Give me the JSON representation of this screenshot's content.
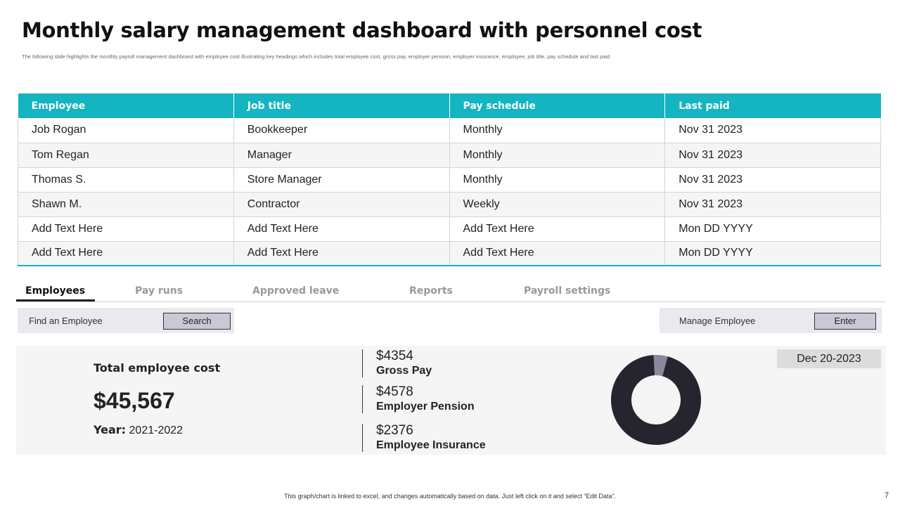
{
  "title": "Monthly salary management dashboard with personnel cost",
  "subtitle": "The  following slide highlights the monthly payroll management dashboard  with employee cost illustrating key headings which includes total employee cost, gross pay, employer pension, employer insurance, employee, job title, pay schedule and last paid",
  "table": {
    "headers": [
      "Employee",
      "Job title",
      "Pay schedule",
      "Last paid"
    ],
    "rows": [
      [
        "Job Rogan",
        "Bookkeeper",
        "Monthly",
        "Nov 31 2023"
      ],
      [
        "Tom Regan",
        "Manager",
        "Monthly",
        "Nov 31 2023"
      ],
      [
        "Thomas S.",
        "Store Manager",
        "Monthly",
        "Nov 31 2023"
      ],
      [
        "Shawn M.",
        "Contractor",
        "Weekly",
        "Nov 31 2023"
      ],
      [
        "Add Text Here",
        "Add Text Here",
        "Add Text Here",
        "Mon DD YYYY"
      ],
      [
        "Add Text Here",
        "Add Text Here",
        "Add Text Here",
        "Mon DD YYYY"
      ]
    ]
  },
  "tabs": [
    "Employees",
    "Pay runs",
    "Approved leave",
    "Reports",
    "Payroll settings"
  ],
  "active_tab": "Employees",
  "find_employee": {
    "label": "Find an Employee",
    "button": "Search"
  },
  "manage_employee": {
    "label": "Manage Employee",
    "button": "Enter"
  },
  "summary": {
    "total_label": "Total employee cost",
    "total_value": "$45,567",
    "year_label": "Year:",
    "year_value": "2021-2022",
    "metrics": [
      {
        "value": "$4354",
        "label": "Gross Pay"
      },
      {
        "value": "$4578",
        "label": "Employer Pension"
      },
      {
        "value": "$2376",
        "label": "Employee Insurance"
      }
    ],
    "date": "Dec 20-2023"
  },
  "donut": {
    "slices": [
      {
        "value": 95,
        "color": "#26252f"
      },
      {
        "value": 5,
        "color": "#8b889c"
      }
    ]
  },
  "footer_note": "This graph/chart is linked to excel, and changes automatically based on data. Just left click on it and select “Edit Data”.",
  "page_number": "7",
  "colors": {
    "accent": "#14b4c1",
    "dark": "#26252f",
    "button": "#c9c8d4"
  }
}
